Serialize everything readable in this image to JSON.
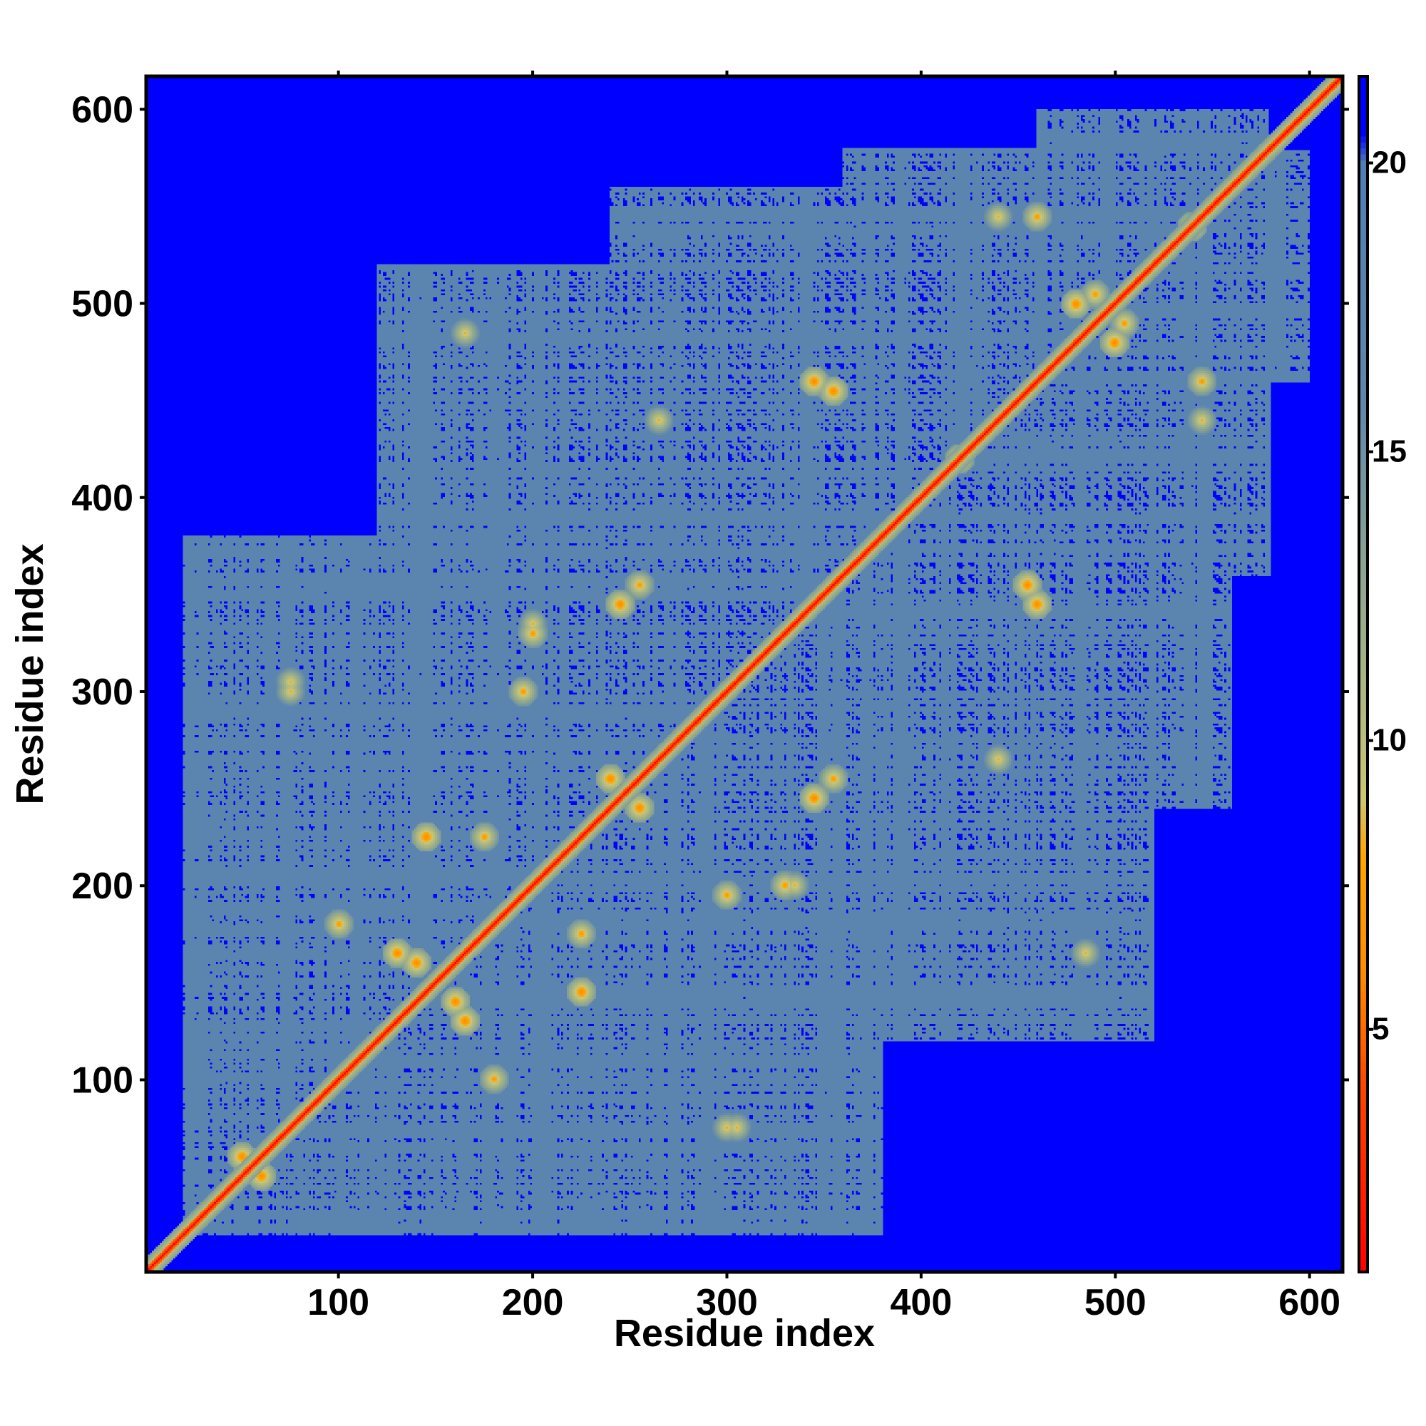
{
  "chart_data": {
    "type": "heatmap",
    "title": "",
    "xlabel": "Residue index",
    "ylabel": "Residue index",
    "xlim": [
      1,
      617
    ],
    "ylim": [
      1,
      617
    ],
    "x_ticks": [
      100,
      200,
      300,
      400,
      500,
      600
    ],
    "y_ticks": [
      100,
      200,
      300,
      400,
      500,
      600
    ],
    "value_description": "pairwise residue distance map, symmetric about the diagonal; low values on the diagonal and contact bands, high (saturated) values elsewhere",
    "colorbar": {
      "min": 0.8,
      "max": 21.5,
      "ticks": [
        5,
        10,
        15,
        20
      ],
      "colors": [
        {
          "value": 0.8,
          "color": "#ff0000"
        },
        {
          "value": 4.0,
          "color": "#ff4500"
        },
        {
          "value": 6.0,
          "color": "#ff8c00"
        },
        {
          "value": 8.0,
          "color": "#ffa500"
        },
        {
          "value": 9.0,
          "color": "#cdc673"
        },
        {
          "value": 12.0,
          "color": "#9aae8a"
        },
        {
          "value": 16.0,
          "color": "#5f86ad"
        },
        {
          "value": 20.0,
          "color": "#4f7fb5"
        },
        {
          "value": 20.5,
          "color": "#0000ff"
        },
        {
          "value": 21.5,
          "color": "#0000ff"
        }
      ]
    },
    "contact_region": {
      "description": "approximate extent of the sub-saturation (light blue) region per residue band",
      "bands": [
        {
          "from": 20,
          "to": 120,
          "partner_range": [
            20,
            380
          ]
        },
        {
          "from": 120,
          "to": 240,
          "partner_range": [
            20,
            520
          ]
        },
        {
          "from": 240,
          "to": 360,
          "partner_range": [
            60,
            560
          ]
        },
        {
          "from": 360,
          "to": 460,
          "partner_range": [
            100,
            580
          ]
        },
        {
          "from": 460,
          "to": 580,
          "partner_range": [
            140,
            600
          ]
        }
      ]
    },
    "hotspots": [
      {
        "x": 50,
        "y": 60,
        "value": 6
      },
      {
        "x": 75,
        "y": 305,
        "value": 8
      },
      {
        "x": 100,
        "y": 180,
        "value": 7
      },
      {
        "x": 140,
        "y": 160,
        "value": 6
      },
      {
        "x": 165,
        "y": 130,
        "value": 6
      },
      {
        "x": 175,
        "y": 225,
        "value": 7
      },
      {
        "x": 195,
        "y": 300,
        "value": 7
      },
      {
        "x": 200,
        "y": 335,
        "value": 8
      },
      {
        "x": 225,
        "y": 145,
        "value": 6
      },
      {
        "x": 245,
        "y": 345,
        "value": 6
      },
      {
        "x": 255,
        "y": 240,
        "value": 6
      },
      {
        "x": 265,
        "y": 440,
        "value": 8
      },
      {
        "x": 300,
        "y": 75,
        "value": 8
      },
      {
        "x": 330,
        "y": 200,
        "value": 7
      },
      {
        "x": 345,
        "y": 460,
        "value": 6
      },
      {
        "x": 355,
        "y": 255,
        "value": 7
      },
      {
        "x": 420,
        "y": 420,
        "value": 6
      },
      {
        "x": 455,
        "y": 355,
        "value": 6
      },
      {
        "x": 460,
        "y": 545,
        "value": 7
      },
      {
        "x": 485,
        "y": 165,
        "value": 8
      },
      {
        "x": 490,
        "y": 505,
        "value": 7
      },
      {
        "x": 500,
        "y": 480,
        "value": 6
      },
      {
        "x": 540,
        "y": 540,
        "value": 6
      },
      {
        "x": 545,
        "y": 440,
        "value": 8
      }
    ]
  }
}
